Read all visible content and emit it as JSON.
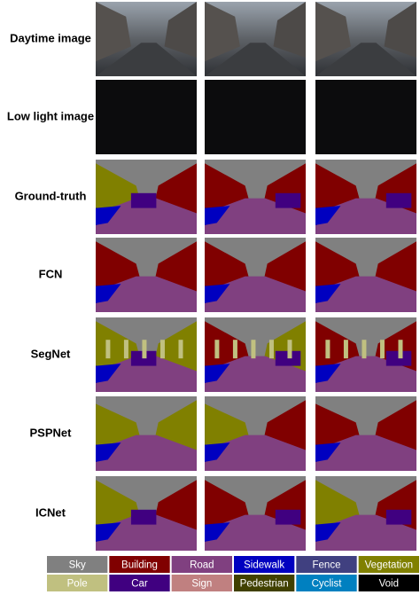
{
  "row_labels": [
    "Daytime image",
    "Low light image",
    "Ground-truth",
    "FCN",
    "SegNet",
    "PSPNet",
    "ICNet"
  ],
  "legend": [
    {
      "label": "Sky",
      "color": "#808080"
    },
    {
      "label": "Building",
      "color": "#800000"
    },
    {
      "label": "Road",
      "color": "#804080"
    },
    {
      "label": "Sidewalk",
      "color": "#0000c0"
    },
    {
      "label": "Fence",
      "color": "#404080"
    },
    {
      "label": "Vegetation",
      "color": "#808000"
    },
    {
      "label": "Pole",
      "color": "#c0c080"
    },
    {
      "label": "Car",
      "color": "#400080"
    },
    {
      "label": "Sign",
      "color": "#c08080"
    },
    {
      "label": "Pedestrian",
      "color": "#404000"
    },
    {
      "label": "Cyclist",
      "color": "#0080c0"
    },
    {
      "label": "Void",
      "color": "#000000"
    }
  ]
}
